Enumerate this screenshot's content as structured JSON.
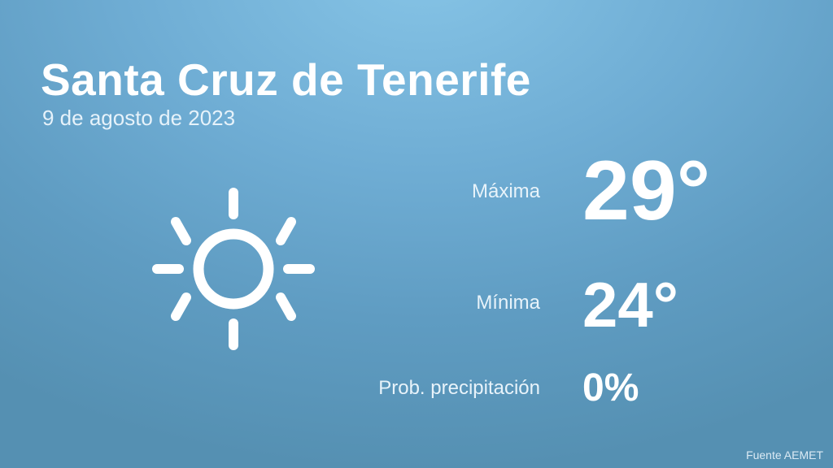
{
  "location": "Santa Cruz de Tenerife",
  "date": "9 de agosto de 2023",
  "weather_icon": "sun-icon",
  "max": {
    "label": "Máxima",
    "value": "29°"
  },
  "min": {
    "label": "Mínima",
    "value": "24°"
  },
  "precip": {
    "label": "Prob. precipitación",
    "value": "0%"
  },
  "source": "Fuente AEMET",
  "colors": {
    "background_top": "#86c4e6",
    "background_bottom": "#5590b2",
    "text": "#ffffff"
  }
}
